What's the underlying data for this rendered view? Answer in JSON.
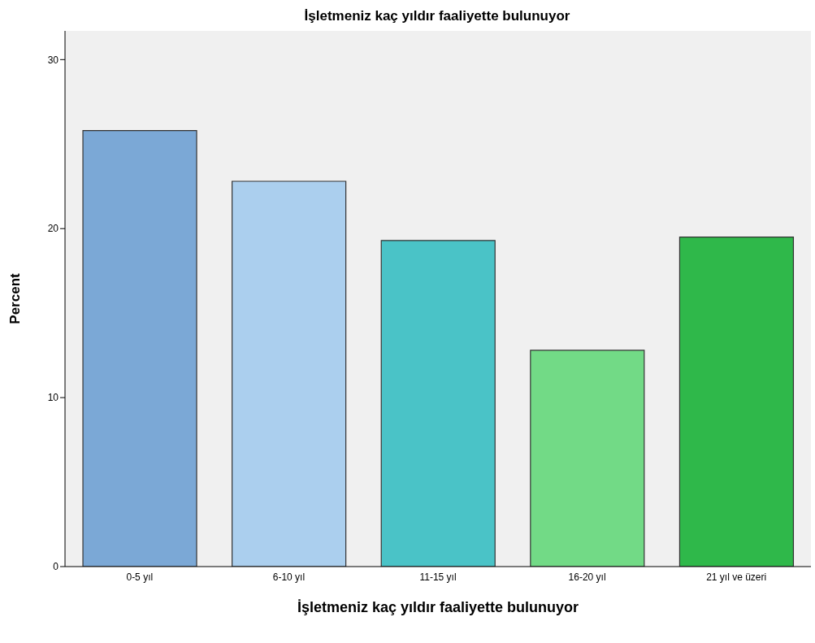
{
  "chart_data": {
    "type": "bar",
    "title": "İşletmeniz kaç yıldır faaliyette bulunuyor",
    "xlabel": "İşletmeniz kaç yıldır faaliyette bulunuyor",
    "ylabel": "Percent",
    "categories": [
      "0-5 yıl",
      "6-10 yıl",
      "11-15 yıl",
      "16-20 yıl",
      "21 yıl ve üzeri"
    ],
    "values": [
      25.8,
      22.8,
      19.3,
      12.8,
      19.5
    ],
    "colors": [
      "#7ba8d6",
      "#abcfee",
      "#4ac3c7",
      "#72da86",
      "#2fb84a"
    ],
    "ylim": [
      0,
      31.7
    ],
    "yticks": [
      0,
      10,
      20,
      30
    ],
    "grid": false
  }
}
